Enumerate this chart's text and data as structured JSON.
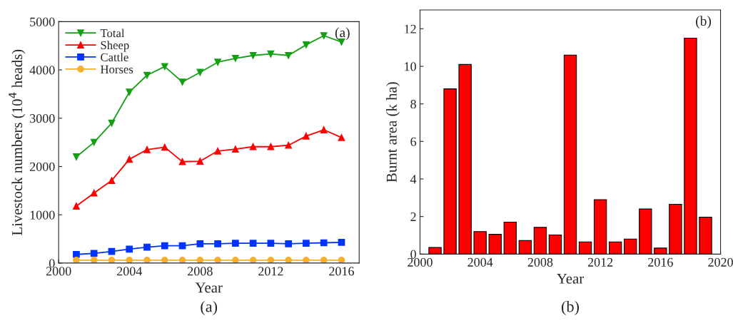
{
  "chart_data": [
    {
      "type": "line",
      "xlabel": "Year",
      "ylabel": "Livestock numbers (10$^{4}$ heads)",
      "annotations": [
        "(a)",
        "(a)"
      ],
      "x": [
        2001,
        2002,
        2003,
        2004,
        2005,
        2006,
        2007,
        2008,
        2009,
        2010,
        2011,
        2012,
        2013,
        2014,
        2015,
        2016
      ],
      "series": [
        {
          "name": "Total",
          "color": "#14a014",
          "marker": "triangle_down",
          "values": [
            2200,
            2500,
            2900,
            3540,
            3890,
            4070,
            3750,
            3950,
            4160,
            4240,
            4300,
            4330,
            4300,
            4520,
            4710,
            4580
          ]
        },
        {
          "name": "Sheep",
          "color": "#ff0000",
          "marker": "triangle",
          "values": [
            1180,
            1450,
            1710,
            2150,
            2350,
            2400,
            2100,
            2110,
            2320,
            2360,
            2410,
            2410,
            2440,
            2630,
            2760,
            2600
          ]
        },
        {
          "name": "Cattle",
          "color": "#0033ff",
          "marker": "square",
          "values": [
            180,
            200,
            240,
            290,
            330,
            360,
            360,
            400,
            400,
            410,
            410,
            410,
            400,
            410,
            420,
            430
          ]
        },
        {
          "name": "Horses",
          "color": "#f5b030",
          "marker": "circle",
          "values": [
            60,
            60,
            60,
            60,
            60,
            60,
            60,
            60,
            60,
            60,
            60,
            60,
            60,
            60,
            60,
            60
          ]
        }
      ],
      "xlim": [
        2000,
        2017
      ],
      "xticks": [
        2000,
        2004,
        2008,
        2012,
        2016
      ],
      "ylim": [
        0,
        5000
      ],
      "yticks": [
        0,
        1000,
        2000,
        3000,
        4000,
        5000
      ],
      "legend": "top left",
      "grid": false
    },
    {
      "type": "bar",
      "xlabel": "Year",
      "ylabel": "Burnt area (k ha)",
      "annotations": [
        "(b)",
        "(b)"
      ],
      "x": [
        2001,
        2002,
        2003,
        2004,
        2005,
        2006,
        2007,
        2008,
        2009,
        2010,
        2011,
        2012,
        2013,
        2014,
        2015,
        2016,
        2017,
        2018,
        2019
      ],
      "series": [
        {
          "color": "#ff0000",
          "values": [
            0.35,
            8.8,
            10.1,
            1.2,
            1.05,
            1.7,
            0.72,
            1.42,
            1.02,
            10.6,
            0.65,
            2.9,
            0.65,
            0.8,
            2.4,
            0.32,
            2.65,
            11.5,
            1.97
          ]
        }
      ],
      "xlim": [
        2000,
        2020
      ],
      "xticks": [
        2000,
        2004,
        2008,
        2012,
        2016,
        2020
      ],
      "ylim": [
        0,
        13
      ],
      "yticks": [
        0,
        2,
        4,
        6,
        8,
        10,
        12
      ],
      "grid": false
    }
  ]
}
